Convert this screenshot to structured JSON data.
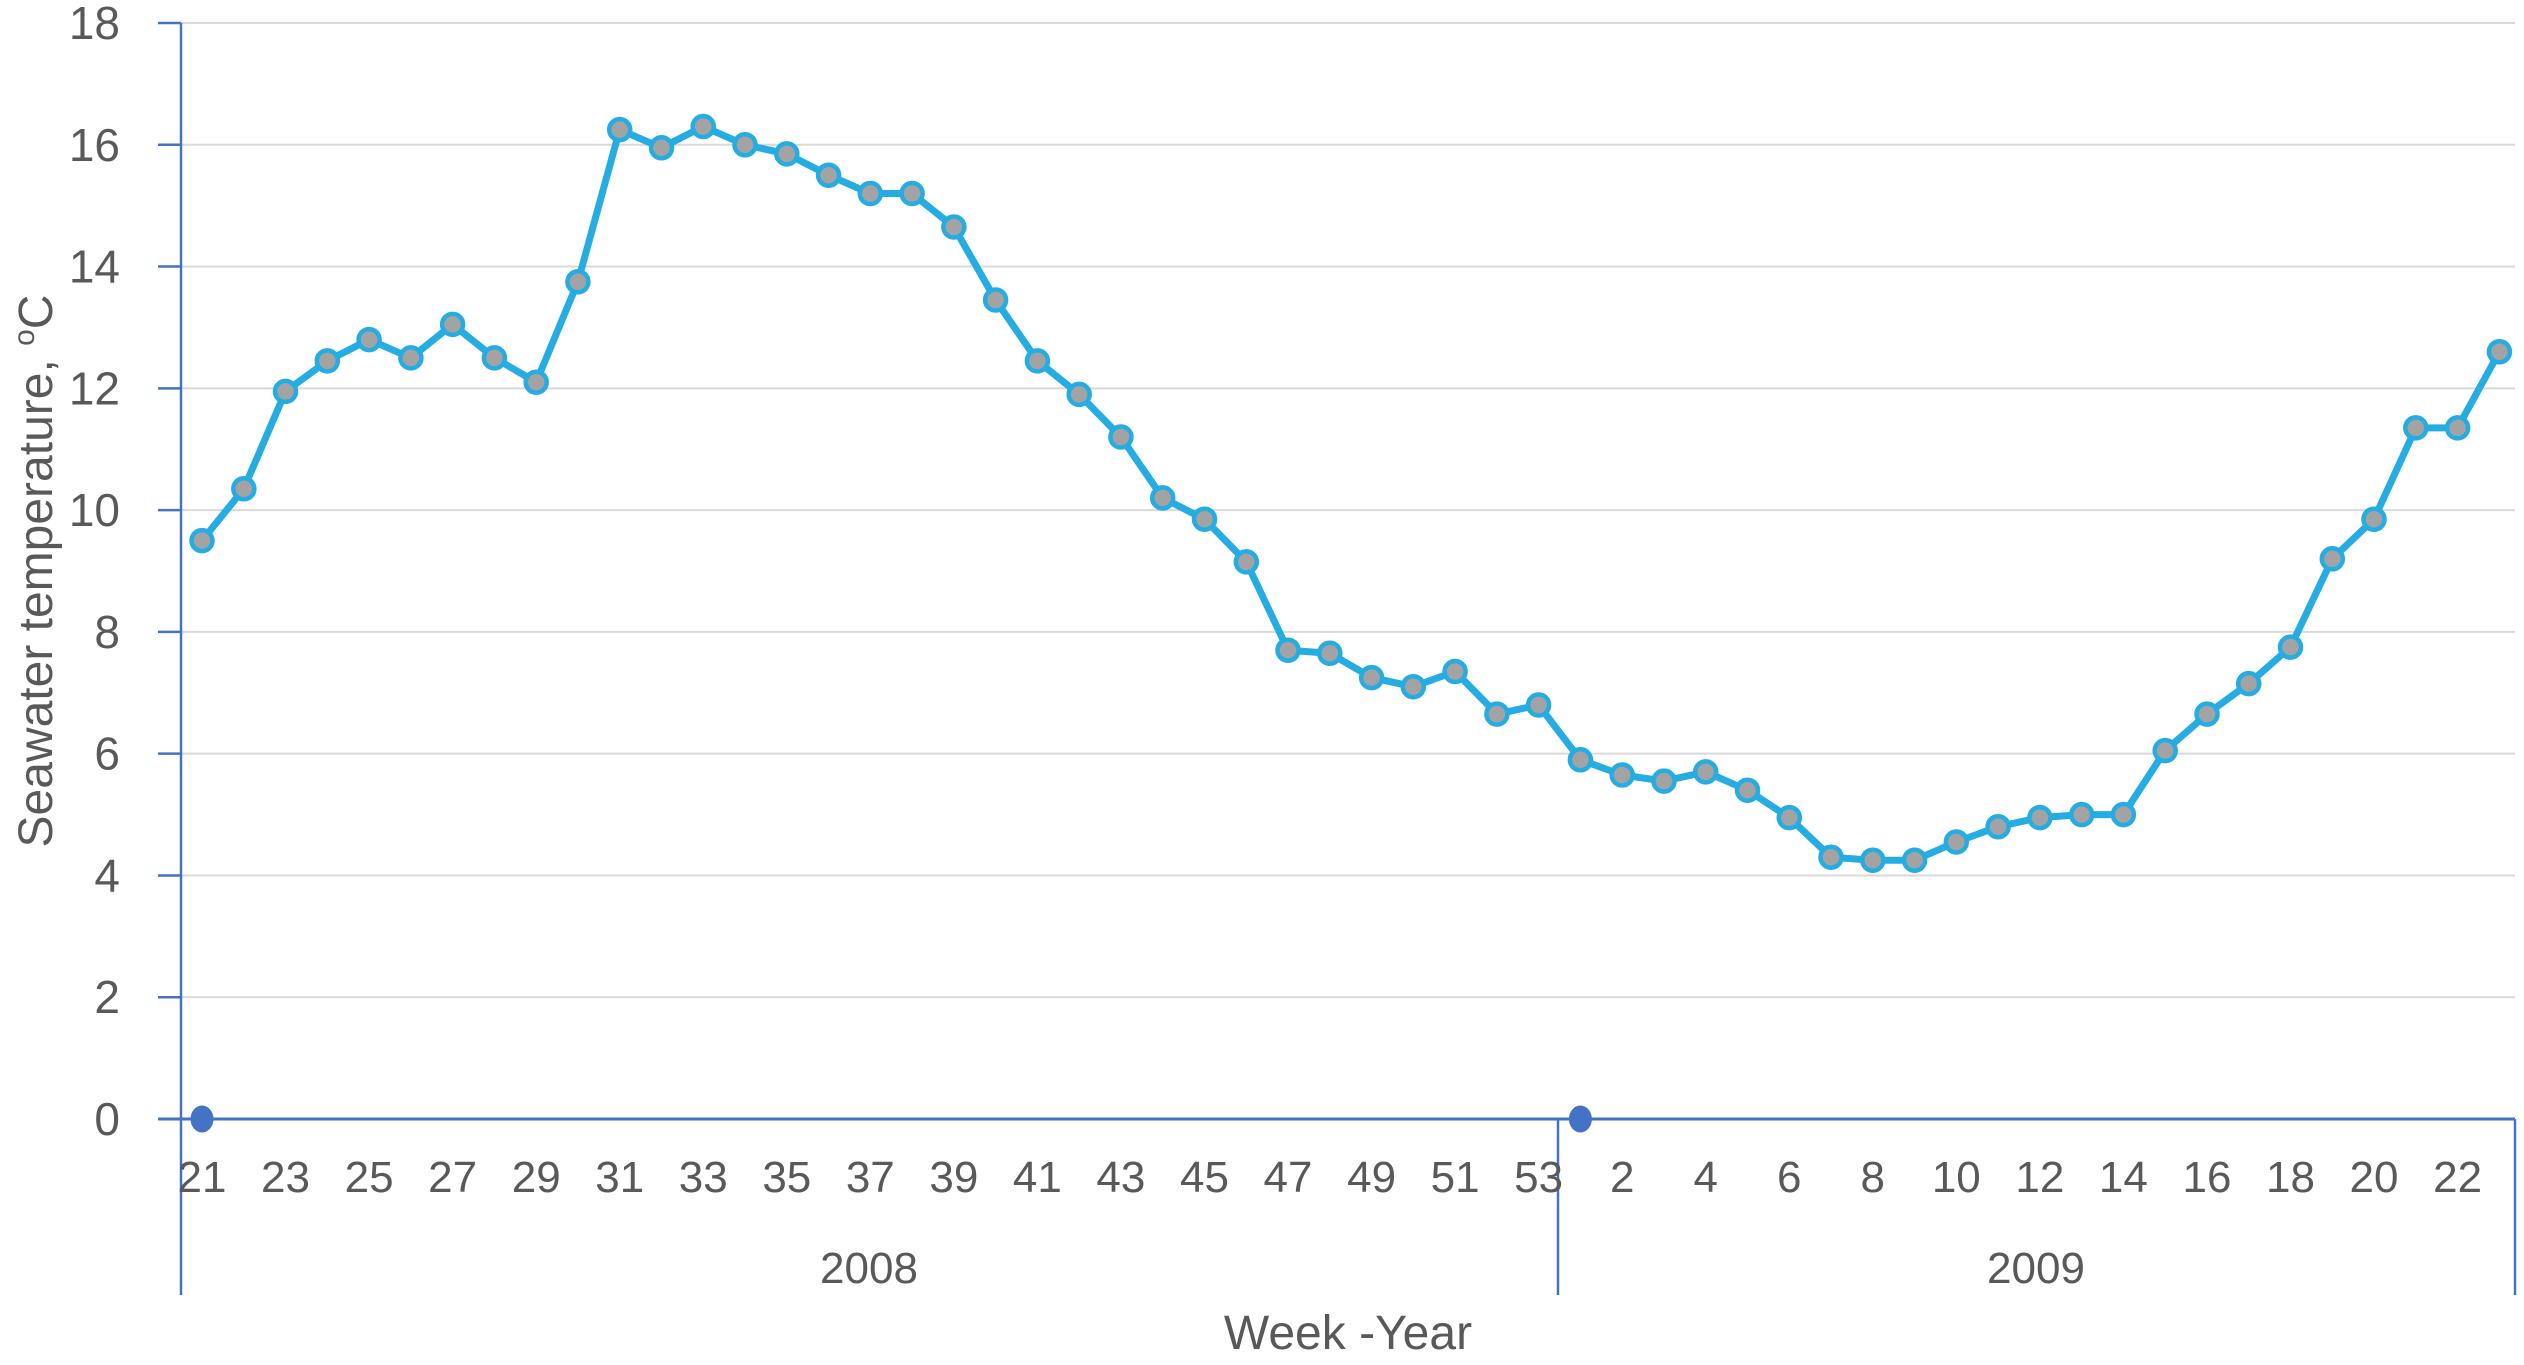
{
  "chart_data": {
    "type": "line",
    "title": "",
    "xlabel": "Week -Year",
    "ylabel": "Seawater temperature, ᵒC",
    "y_axis": {
      "min": 0,
      "max": 18,
      "step": 2,
      "tick_labels": [
        "0",
        "2",
        "4",
        "6",
        "8",
        "10",
        "12",
        "14",
        "16",
        "18"
      ],
      "title_main": "Seawater temperature, ",
      "title_sup": "o",
      "title_end": "C"
    },
    "x_axis": {
      "title": "Week -Year",
      "tick_labels": [
        "21",
        "23",
        "25",
        "27",
        "29",
        "31",
        "33",
        "35",
        "37",
        "39",
        "41",
        "43",
        "45",
        "47",
        "49",
        "51",
        "53",
        "2",
        "4",
        "6",
        "8",
        "10",
        "12",
        "14",
        "16",
        "18",
        "20",
        "22"
      ]
    },
    "groups": [
      {
        "year_label": "2008",
        "weeks": [
          21,
          22,
          23,
          24,
          25,
          26,
          27,
          28,
          29,
          30,
          31,
          32,
          33,
          34,
          35,
          36,
          37,
          38,
          39,
          40,
          41,
          42,
          43,
          44,
          45,
          46,
          47,
          48,
          49,
          50,
          51,
          52,
          53
        ],
        "values": [
          9.5,
          10.35,
          11.95,
          12.45,
          12.8,
          12.5,
          13.05,
          12.5,
          12.1,
          13.75,
          16.25,
          15.95,
          16.3,
          16.0,
          15.85,
          15.5,
          15.2,
          15.2,
          14.65,
          13.45,
          12.45,
          11.9,
          11.2,
          10.2,
          9.85,
          9.15,
          7.7,
          7.65,
          7.25,
          7.1,
          7.35,
          6.65,
          6.8
        ]
      },
      {
        "year_label": "2009",
        "weeks": [
          1,
          2,
          3,
          4,
          5,
          6,
          7,
          8,
          9,
          10,
          11,
          12,
          13,
          14,
          15,
          16,
          17,
          18,
          19,
          20,
          21,
          22,
          23
        ],
        "values": [
          5.9,
          5.65,
          5.55,
          5.7,
          5.4,
          4.95,
          4.3,
          4.25,
          4.25,
          4.55,
          4.8,
          4.95,
          5.0,
          5.0,
          6.05,
          6.65,
          7.15,
          7.75,
          9.2,
          9.85,
          11.35,
          11.35,
          12.6
        ]
      }
    ],
    "zero_markers": [
      {
        "group_index": 0,
        "week": 21,
        "value": 0
      },
      {
        "group_index": 1,
        "week": 1,
        "value": 0
      }
    ],
    "grid": true,
    "legend": "none",
    "colors": {
      "line": "#25ACE3",
      "marker_fill": "#A3A3A3",
      "zero_marker": "#4472C4",
      "axis": "#4472C4",
      "gridline": "#D9D9D9",
      "text": "#595959"
    }
  }
}
